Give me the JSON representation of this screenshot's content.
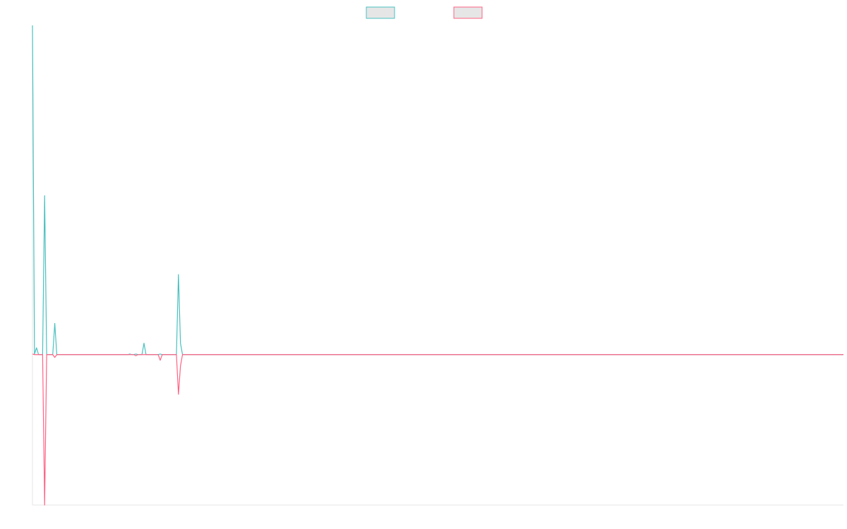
{
  "chart_data": {
    "type": "line",
    "title": "",
    "xlabel": "",
    "ylabel": "",
    "legend_position": "top-center",
    "grid": false,
    "ylim": [
      -265,
      580
    ],
    "series": [
      {
        "name": "",
        "color": "#4bc0c0",
        "fill": "#e6e6e6",
        "points": [
          [
            0,
            580
          ],
          [
            1,
            1
          ],
          [
            2,
            12
          ],
          [
            3,
            0
          ],
          [
            4,
            0
          ],
          [
            5,
            0
          ],
          [
            6,
            280
          ],
          [
            7,
            0
          ],
          [
            8,
            0
          ],
          [
            9,
            0
          ],
          [
            10,
            0
          ],
          [
            11,
            55
          ],
          [
            12,
            0
          ],
          [
            13,
            0
          ],
          [
            14,
            0
          ],
          [
            15,
            0
          ],
          [
            16,
            0
          ],
          [
            17,
            0
          ],
          [
            18,
            0
          ],
          [
            19,
            0
          ],
          [
            20,
            0
          ],
          [
            21,
            0
          ],
          [
            22,
            0
          ],
          [
            23,
            0
          ],
          [
            24,
            0
          ],
          [
            25,
            0
          ],
          [
            26,
            0
          ],
          [
            27,
            0
          ],
          [
            28,
            0
          ],
          [
            29,
            0
          ],
          [
            30,
            0
          ],
          [
            31,
            0
          ],
          [
            32,
            0
          ],
          [
            33,
            0
          ],
          [
            34,
            0
          ],
          [
            35,
            0
          ],
          [
            36,
            0
          ],
          [
            37,
            0
          ],
          [
            38,
            0
          ],
          [
            39,
            0
          ],
          [
            40,
            0
          ],
          [
            41,
            0
          ],
          [
            42,
            0
          ],
          [
            43,
            0
          ],
          [
            44,
            0
          ],
          [
            45,
            0
          ],
          [
            46,
            0
          ],
          [
            47,
            0
          ],
          [
            48,
            1
          ],
          [
            49,
            0
          ],
          [
            50,
            0
          ],
          [
            51,
            1
          ],
          [
            52,
            0
          ],
          [
            53,
            0
          ],
          [
            54,
            0
          ],
          [
            55,
            20
          ],
          [
            56,
            0
          ],
          [
            57,
            0
          ],
          [
            58,
            0
          ],
          [
            59,
            0
          ],
          [
            60,
            0
          ],
          [
            61,
            0
          ],
          [
            62,
            0
          ],
          [
            63,
            1
          ],
          [
            64,
            0
          ],
          [
            65,
            0
          ],
          [
            66,
            0
          ],
          [
            67,
            0
          ],
          [
            68,
            0
          ],
          [
            69,
            0
          ],
          [
            70,
            0
          ],
          [
            71,
            0
          ],
          [
            72,
            141
          ],
          [
            73,
            20
          ],
          [
            74,
            0
          ],
          [
            75,
            0
          ],
          [
            400,
            0
          ]
        ]
      },
      {
        "name": "",
        "color": "#ff6384",
        "fill": "#e6e6e6",
        "points": [
          [
            0,
            1
          ],
          [
            1,
            0
          ],
          [
            2,
            0
          ],
          [
            3,
            0
          ],
          [
            4,
            0
          ],
          [
            5,
            0
          ],
          [
            6,
            -265
          ],
          [
            7,
            0
          ],
          [
            8,
            0
          ],
          [
            9,
            0
          ],
          [
            10,
            0
          ],
          [
            11,
            -5
          ],
          [
            12,
            0
          ],
          [
            13,
            0
          ],
          [
            14,
            0
          ],
          [
            15,
            0
          ],
          [
            16,
            0
          ],
          [
            17,
            0
          ],
          [
            18,
            0
          ],
          [
            19,
            0
          ],
          [
            20,
            0
          ],
          [
            21,
            0
          ],
          [
            22,
            0
          ],
          [
            23,
            0
          ],
          [
            24,
            0
          ],
          [
            25,
            0
          ],
          [
            26,
            0
          ],
          [
            27,
            0
          ],
          [
            28,
            0
          ],
          [
            29,
            0
          ],
          [
            30,
            0
          ],
          [
            31,
            0
          ],
          [
            32,
            0
          ],
          [
            33,
            0
          ],
          [
            34,
            0
          ],
          [
            35,
            0
          ],
          [
            36,
            0
          ],
          [
            37,
            0
          ],
          [
            38,
            0
          ],
          [
            39,
            0
          ],
          [
            40,
            0
          ],
          [
            41,
            0
          ],
          [
            42,
            0
          ],
          [
            43,
            0
          ],
          [
            44,
            0
          ],
          [
            45,
            0
          ],
          [
            46,
            0
          ],
          [
            47,
            0
          ],
          [
            48,
            0
          ],
          [
            49,
            0
          ],
          [
            50,
            0
          ],
          [
            51,
            -2
          ],
          [
            52,
            0
          ],
          [
            53,
            0
          ],
          [
            54,
            0
          ],
          [
            55,
            0
          ],
          [
            56,
            0
          ],
          [
            57,
            0
          ],
          [
            58,
            0
          ],
          [
            59,
            0
          ],
          [
            60,
            0
          ],
          [
            61,
            0
          ],
          [
            62,
            0
          ],
          [
            63,
            -10
          ],
          [
            64,
            0
          ],
          [
            65,
            0
          ],
          [
            66,
            0
          ],
          [
            67,
            0
          ],
          [
            68,
            0
          ],
          [
            69,
            0
          ],
          [
            70,
            0
          ],
          [
            71,
            0
          ],
          [
            72,
            -70
          ],
          [
            73,
            -20
          ],
          [
            74,
            0
          ],
          [
            75,
            0
          ],
          [
            400,
            0
          ]
        ]
      }
    ],
    "xlim": [
      0,
      400
    ]
  }
}
